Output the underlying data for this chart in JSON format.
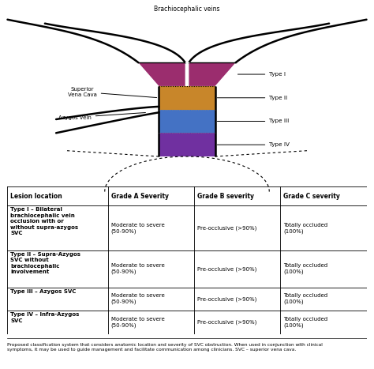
{
  "diagram": {
    "brachiocephalic_label": "Brachiocephalic veins",
    "superior_vena_cava_label": "Superior\nVena Cava",
    "azygos_label": "Azygos vein",
    "type_labels": [
      "Type I",
      "Type II",
      "Type III",
      "Type IV"
    ],
    "type_colors": [
      "#9B2D6E",
      "#C8862A",
      "#4472C4",
      "#7030A0"
    ]
  },
  "table": {
    "col_headers": [
      "Lesion location",
      "Grade A Severity",
      "Grade B severity",
      "Grade C severity"
    ],
    "rows": [
      {
        "location_bold": "Type I – Bilateral\nbrachiocephalic vein\nocclusion with or\nwithout supra-azygos\nSVC",
        "grade_a": "Moderate to severe\n(50-90%)",
        "grade_b": "Pre-occlusive (>90%)",
        "grade_c": "Totally occluded\n(100%)"
      },
      {
        "location_bold": "Type II – Supra-Azygos\nSVC without\nbrachiocephalic\ninvolvement",
        "grade_a": "Moderate to severe\n(50-90%)",
        "grade_b": "Pre-occlusive (>90%)",
        "grade_c": "Totally occluded\n(100%)"
      },
      {
        "location_bold": "Type III – Azygos SVC",
        "grade_a": "Moderate to severe\n(50-90%)",
        "grade_b": "Pre-occlusive (>90%)",
        "grade_c": "Totally occluded\n(100%)"
      },
      {
        "location_bold": "Type IV – Infra-Azygos\nSVC",
        "grade_a": "Moderate to severe\n(50-90%)",
        "grade_b": "Pre-occlusive (>90%)",
        "grade_c": "Totally occluded\n(100%)"
      }
    ]
  },
  "caption": "Proposed classification system that considers anatomic location and severity of SVC obstruction. When used in conjunction with clinical\nsymptoms, it may be used to guide management and facilitate communication among clinicians. SVC – superior vena cava.",
  "background_color": "#FFFFFF"
}
